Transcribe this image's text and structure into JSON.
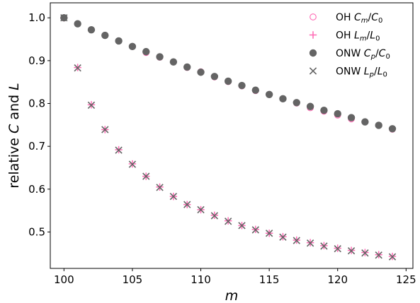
{
  "chart_data": {
    "type": "scatter",
    "xlabel": "m",
    "ylabel": "relative C and L",
    "xlim": [
      99,
      125.5
    ],
    "ylim": [
      0.415,
      1.035
    ],
    "xticks": [
      100,
      105,
      110,
      115,
      120,
      125
    ],
    "yticks": [
      0.5,
      0.6,
      0.7,
      0.8,
      0.9,
      1.0
    ],
    "xtick_labels": [
      "100",
      "105",
      "110",
      "115",
      "120",
      "125"
    ],
    "ytick_labels": [
      "0.5",
      "0.6",
      "0.7",
      "0.8",
      "0.9",
      "1.0"
    ],
    "grid": false,
    "legend_position": "top-right",
    "x": [
      100,
      101,
      102,
      103,
      104,
      105,
      106,
      107,
      108,
      109,
      110,
      111,
      112,
      113,
      114,
      115,
      116,
      117,
      118,
      119,
      120,
      121,
      122,
      123,
      124
    ],
    "series": [
      {
        "name": "OH Cm/C0",
        "legend": {
          "prefix": "OH ",
          "sym": "C",
          "sub": "m",
          "sym2": "C",
          "sub2": "0"
        },
        "marker": "open-circle",
        "color": "#ff69b4",
        "values": [
          1.0,
          0.986,
          0.972,
          0.959,
          0.946,
          0.933,
          0.919,
          0.908,
          0.897,
          0.884,
          0.874,
          0.862,
          0.851,
          0.841,
          0.83,
          0.821,
          0.811,
          0.801,
          0.79,
          0.782,
          0.773,
          0.764,
          0.757,
          0.749,
          0.74
        ]
      },
      {
        "name": "OH Lm/L0",
        "legend": {
          "prefix": "OH ",
          "sym": "L",
          "sub": "m",
          "sym2": "L",
          "sub2": "0"
        },
        "marker": "plus",
        "color": "#ff69b4",
        "values": [
          1.0,
          0.884,
          0.797,
          0.739,
          0.692,
          0.659,
          0.63,
          0.605,
          0.583,
          0.564,
          0.552,
          0.539,
          0.526,
          0.515,
          0.506,
          0.497,
          0.489,
          0.481,
          0.475,
          0.468,
          0.462,
          0.457,
          0.452,
          0.447,
          0.443
        ]
      },
      {
        "name": "ONW Cp/C0",
        "legend": {
          "prefix": "ONW ",
          "sym": "C",
          "sub": "p",
          "sym2": "C",
          "sub2": "0"
        },
        "marker": "filled-circle",
        "color": "#646464",
        "values": [
          1.0,
          0.986,
          0.972,
          0.959,
          0.946,
          0.933,
          0.921,
          0.909,
          0.897,
          0.885,
          0.873,
          0.863,
          0.852,
          0.842,
          0.831,
          0.821,
          0.811,
          0.802,
          0.793,
          0.784,
          0.776,
          0.767,
          0.757,
          0.749,
          0.741
        ]
      },
      {
        "name": "ONW Lp/L0",
        "legend": {
          "prefix": "ONW ",
          "sym": "L",
          "sub": "p",
          "sym2": "L",
          "sub2": "0"
        },
        "marker": "x",
        "color": "#646464",
        "values": [
          1.0,
          0.883,
          0.796,
          0.739,
          0.691,
          0.658,
          0.63,
          0.604,
          0.583,
          0.564,
          0.552,
          0.538,
          0.525,
          0.515,
          0.505,
          0.497,
          0.488,
          0.48,
          0.474,
          0.467,
          0.461,
          0.456,
          0.451,
          0.446,
          0.442
        ]
      }
    ]
  }
}
